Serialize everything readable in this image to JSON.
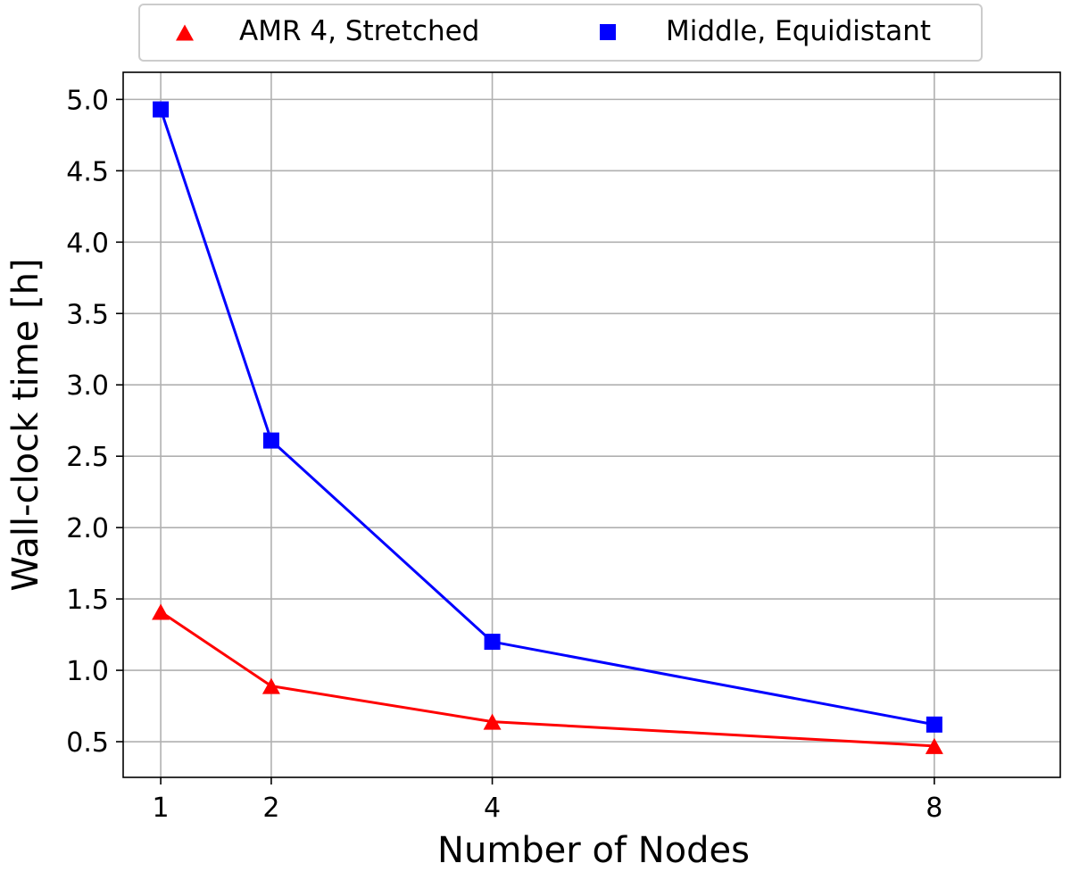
{
  "chart_data": {
    "type": "line",
    "xlabel": "Number of Nodes",
    "ylabel": "Wall-clock time [h]",
    "x": [
      1,
      2,
      4,
      8
    ],
    "x_ticks": [
      "1",
      "2",
      "4",
      "8"
    ],
    "xlim": [
      0.66,
      9.14
    ],
    "y_ticks": [
      "0.5",
      "1.0",
      "1.5",
      "2.0",
      "2.5",
      "3.0",
      "3.5",
      "4.0",
      "4.5",
      "5.0"
    ],
    "ylim": [
      0.25,
      5.19
    ],
    "grid": true,
    "legend_position": "top-center",
    "series": [
      {
        "name": "AMR 4, Stretched",
        "values": [
          1.41,
          0.89,
          0.64,
          0.47
        ],
        "color": "#ff0000",
        "marker": "triangle"
      },
      {
        "name": "Middle, Equidistant",
        "values": [
          4.93,
          2.61,
          1.2,
          0.62
        ],
        "color": "#0000ff",
        "marker": "square"
      }
    ]
  }
}
